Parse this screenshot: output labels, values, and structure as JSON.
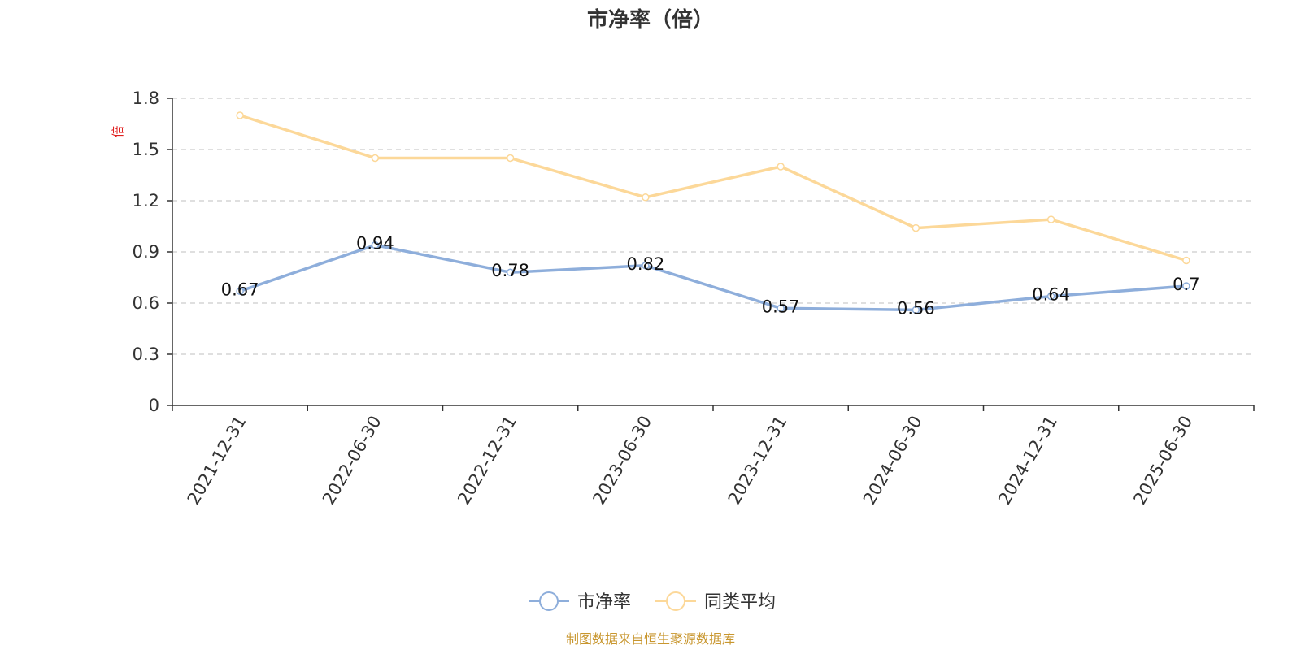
{
  "chart_data": {
    "type": "line",
    "title": "市净率（倍）",
    "ylabel": "倍",
    "categories": [
      "2021-12-31",
      "2022-06-30",
      "2022-12-31",
      "2023-06-30",
      "2023-12-31",
      "2024-06-30",
      "2024-12-31",
      "2025-06-30"
    ],
    "yticks": [
      "0",
      "0.3",
      "0.6",
      "0.9",
      "1.2",
      "1.5",
      "1.8"
    ],
    "ylim": [
      0,
      1.8
    ],
    "grid": true,
    "legend_position": "bottom-center",
    "series": [
      {
        "name": "市净率",
        "color": "#8eaedb",
        "values": [
          0.67,
          0.94,
          0.78,
          0.82,
          0.57,
          0.56,
          0.64,
          0.7
        ],
        "labels": [
          "0.67",
          "0.94",
          "0.78",
          "0.82",
          "0.57",
          "0.56",
          "0.64",
          "0.7"
        ]
      },
      {
        "name": "同类平均",
        "color": "#fcd899",
        "values": [
          1.7,
          1.45,
          1.45,
          1.22,
          1.4,
          1.04,
          1.09,
          0.85
        ]
      }
    ],
    "source": "制图数据来自恒生聚源数据库"
  }
}
